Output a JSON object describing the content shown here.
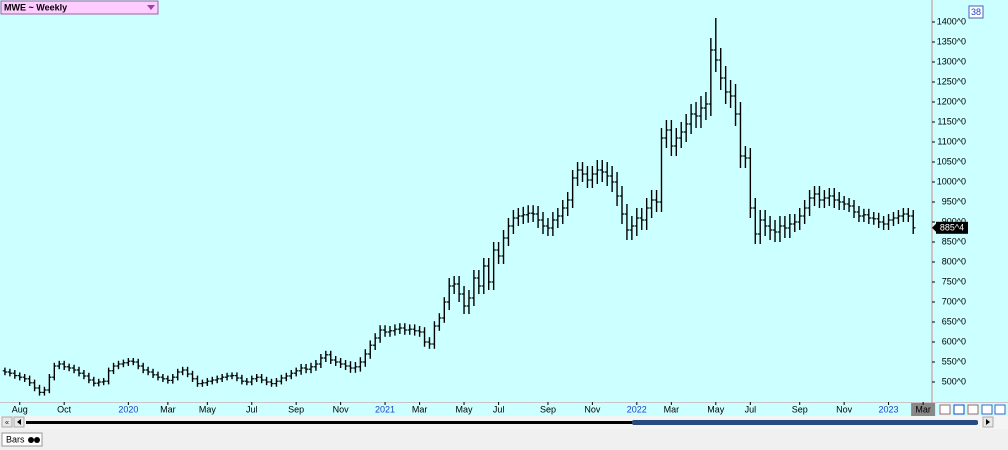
{
  "chart_data": {
    "type": "ohlc",
    "title": "MWE ~ Weekly",
    "color": "#000000",
    "background": "#ccffff",
    "open": [
      528,
      525,
      522,
      516,
      512,
      508,
      498,
      485,
      474,
      480,
      512,
      540,
      545,
      538,
      535,
      530,
      522,
      515,
      505,
      497,
      500,
      502,
      528,
      540,
      545,
      548,
      552,
      550,
      540,
      530,
      525,
      518,
      512,
      508,
      504,
      512,
      525,
      530,
      520,
      508,
      496,
      498,
      502,
      505,
      508,
      512,
      515,
      516,
      510,
      502,
      500,
      508,
      512,
      505,
      500,
      496,
      502,
      510,
      515,
      522,
      528,
      535,
      532,
      538,
      545,
      560,
      568,
      555,
      550,
      545,
      540,
      535,
      538,
      550,
      570,
      592,
      610,
      630,
      625,
      628,
      632,
      635,
      630,
      632,
      628,
      625,
      600,
      595,
      640,
      660,
      700,
      740,
      745,
      720,
      690,
      710,
      760,
      740,
      790,
      750,
      830,
      815,
      860,
      890,
      910,
      915,
      918,
      922,
      920,
      905,
      890,
      885,
      905,
      915,
      935,
      955,
      1010,
      1030,
      1020,
      1005,
      1020,
      1030,
      1025,
      1015,
      1000,
      965,
      920,
      880,
      890,
      910,
      905,
      935,
      955,
      950,
      1110,
      1130,
      1090,
      1110,
      1125,
      1145,
      1170,
      1165,
      1185,
      1195,
      1330,
      1305,
      1260,
      1225,
      1215,
      1170,
      1065,
      1060,
      935,
      870,
      905,
      890,
      880,
      875,
      890,
      885,
      895,
      900,
      915,
      935,
      960,
      970,
      955,
      960,
      965,
      955,
      950,
      945,
      940,
      925,
      915,
      918,
      910,
      908,
      900,
      895,
      905,
      910,
      915,
      920,
      915
    ],
    "high": [
      536,
      533,
      530,
      524,
      520,
      516,
      506,
      493,
      488,
      520,
      548,
      553,
      553,
      546,
      543,
      538,
      530,
      523,
      513,
      508,
      510,
      536,
      548,
      553,
      556,
      560,
      560,
      558,
      548,
      538,
      533,
      526,
      520,
      516,
      520,
      533,
      538,
      538,
      528,
      516,
      506,
      510,
      513,
      516,
      520,
      523,
      524,
      524,
      518,
      510,
      516,
      520,
      520,
      513,
      508,
      510,
      518,
      523,
      530,
      536,
      545,
      545,
      548,
      555,
      570,
      578,
      578,
      565,
      560,
      555,
      552,
      550,
      562,
      582,
      604,
      622,
      642,
      642,
      640,
      644,
      647,
      647,
      644,
      644,
      640,
      637,
      612,
      652,
      672,
      712,
      760,
      765,
      765,
      740,
      730,
      780,
      780,
      810,
      810,
      850,
      850,
      880,
      910,
      930,
      935,
      938,
      942,
      942,
      940,
      925,
      910,
      925,
      935,
      955,
      975,
      1030,
      1050,
      1050,
      1040,
      1040,
      1055,
      1055,
      1050,
      1040,
      1025,
      990,
      945,
      915,
      935,
      935,
      960,
      980,
      980,
      1135,
      1155,
      1155,
      1135,
      1150,
      1170,
      1195,
      1200,
      1215,
      1225,
      1360,
      1410,
      1335,
      1290,
      1255,
      1245,
      1200,
      1090,
      1085,
      960,
      930,
      930,
      915,
      905,
      915,
      915,
      920,
      920,
      935,
      955,
      980,
      990,
      990,
      980,
      985,
      985,
      975,
      965,
      960,
      955,
      940,
      933,
      933,
      925,
      923,
      915,
      920,
      925,
      930,
      935,
      935,
      930
    ],
    "low": [
      517,
      514,
      508,
      504,
      500,
      490,
      477,
      466,
      466,
      472,
      504,
      532,
      530,
      527,
      522,
      514,
      507,
      497,
      489,
      489,
      492,
      494,
      520,
      532,
      537,
      540,
      542,
      532,
      522,
      517,
      510,
      504,
      500,
      496,
      496,
      504,
      517,
      512,
      500,
      488,
      488,
      490,
      494,
      497,
      500,
      504,
      507,
      502,
      494,
      492,
      492,
      500,
      497,
      492,
      488,
      488,
      494,
      502,
      507,
      514,
      518,
      522,
      522,
      528,
      535,
      550,
      545,
      540,
      535,
      530,
      523,
      523,
      526,
      538,
      558,
      580,
      598,
      613,
      613,
      616,
      620,
      618,
      618,
      616,
      613,
      588,
      583,
      583,
      628,
      648,
      680,
      720,
      700,
      670,
      670,
      690,
      720,
      720,
      730,
      730,
      795,
      795,
      840,
      870,
      890,
      895,
      898,
      900,
      885,
      870,
      865,
      865,
      885,
      895,
      915,
      935,
      990,
      1000,
      985,
      985,
      995,
      1000,
      990,
      975,
      940,
      895,
      855,
      855,
      865,
      880,
      880,
      910,
      925,
      925,
      1085,
      1065,
      1065,
      1085,
      1100,
      1120,
      1135,
      1135,
      1155,
      1165,
      1275,
      1230,
      1195,
      1185,
      1140,
      1035,
      1035,
      910,
      845,
      845,
      865,
      855,
      850,
      850,
      860,
      860,
      875,
      880,
      895,
      915,
      940,
      935,
      935,
      940,
      935,
      930,
      930,
      925,
      910,
      900,
      900,
      895,
      893,
      885,
      880,
      880,
      890,
      895,
      900,
      900,
      870
    ],
    "close": [
      525,
      522,
      516,
      512,
      508,
      498,
      485,
      474,
      480,
      512,
      540,
      545,
      538,
      535,
      530,
      522,
      515,
      505,
      497,
      500,
      502,
      528,
      540,
      545,
      548,
      552,
      550,
      540,
      530,
      525,
      518,
      512,
      508,
      504,
      512,
      525,
      530,
      520,
      508,
      496,
      498,
      502,
      505,
      508,
      512,
      515,
      516,
      510,
      502,
      500,
      508,
      512,
      505,
      500,
      496,
      502,
      510,
      515,
      522,
      528,
      535,
      532,
      538,
      545,
      560,
      568,
      555,
      550,
      545,
      540,
      535,
      538,
      550,
      570,
      592,
      610,
      630,
      625,
      628,
      632,
      635,
      630,
      632,
      628,
      625,
      600,
      595,
      640,
      660,
      700,
      740,
      745,
      720,
      690,
      710,
      760,
      740,
      790,
      750,
      830,
      815,
      860,
      890,
      910,
      915,
      918,
      922,
      920,
      905,
      890,
      885,
      905,
      915,
      935,
      955,
      1010,
      1030,
      1020,
      1005,
      1020,
      1030,
      1025,
      1015,
      1000,
      965,
      920,
      880,
      890,
      910,
      905,
      935,
      955,
      950,
      1110,
      1130,
      1090,
      1110,
      1125,
      1145,
      1170,
      1165,
      1185,
      1195,
      1330,
      1305,
      1260,
      1225,
      1215,
      1170,
      1065,
      1060,
      935,
      870,
      905,
      890,
      880,
      875,
      890,
      885,
      895,
      900,
      915,
      935,
      960,
      970,
      955,
      960,
      965,
      955,
      950,
      945,
      940,
      925,
      915,
      918,
      910,
      908,
      900,
      895,
      905,
      910,
      915,
      920,
      915,
      885.5
    ],
    "last_price": {
      "value": 885.5,
      "label": "885^4"
    },
    "xlim": [
      -0.8,
      187.8
    ],
    "xticks": [
      {
        "value": 3,
        "label": "Aug"
      },
      {
        "value": 12,
        "label": "Oct"
      },
      {
        "value": 25,
        "label": "2020"
      },
      {
        "value": 33,
        "label": "Mar"
      },
      {
        "value": 41,
        "label": "May"
      },
      {
        "value": 50,
        "label": "Jul"
      },
      {
        "value": 59,
        "label": "Sep"
      },
      {
        "value": 68,
        "label": "Nov"
      },
      {
        "value": 77,
        "label": "2021"
      },
      {
        "value": 84,
        "label": "Mar"
      },
      {
        "value": 93,
        "label": "May"
      },
      {
        "value": 100,
        "label": "Jul"
      },
      {
        "value": 110,
        "label": "Sep"
      },
      {
        "value": 119,
        "label": "Nov"
      },
      {
        "value": 128,
        "label": "2022"
      },
      {
        "value": 135,
        "label": "Mar"
      },
      {
        "value": 144,
        "label": "May"
      },
      {
        "value": 151,
        "label": "Jul"
      },
      {
        "value": 161,
        "label": "Sep"
      },
      {
        "value": 170,
        "label": "Nov"
      },
      {
        "value": 179,
        "label": "2023"
      },
      {
        "value": 186,
        "label": "Mar"
      }
    ],
    "ylim": [
      450,
      1450
    ],
    "yticks": [
      {
        "value": 500,
        "label": "500^0"
      },
      {
        "value": 550,
        "label": "550^0"
      },
      {
        "value": 600,
        "label": "600^0"
      },
      {
        "value": 650,
        "label": "650^0"
      },
      {
        "value": 700,
        "label": "700^0"
      },
      {
        "value": 750,
        "label": "750^0"
      },
      {
        "value": 800,
        "label": "800^0"
      },
      {
        "value": 850,
        "label": "850^0"
      },
      {
        "value": 900,
        "label": "900^0"
      },
      {
        "value": 950,
        "label": "950^0"
      },
      {
        "value": 1000,
        "label": "1000^0"
      },
      {
        "value": 1050,
        "label": "1050^0"
      },
      {
        "value": 1100,
        "label": "1100^0"
      },
      {
        "value": 1150,
        "label": "1150^0"
      },
      {
        "value": 1200,
        "label": "1200^0"
      },
      {
        "value": 1250,
        "label": "1250^0"
      },
      {
        "value": 1300,
        "label": "1300^0"
      },
      {
        "value": 1350,
        "label": "1350^0"
      },
      {
        "value": 1400,
        "label": "1400^0"
      }
    ],
    "grid": false
  },
  "badge": "38",
  "tabs": [
    "Bars"
  ]
}
